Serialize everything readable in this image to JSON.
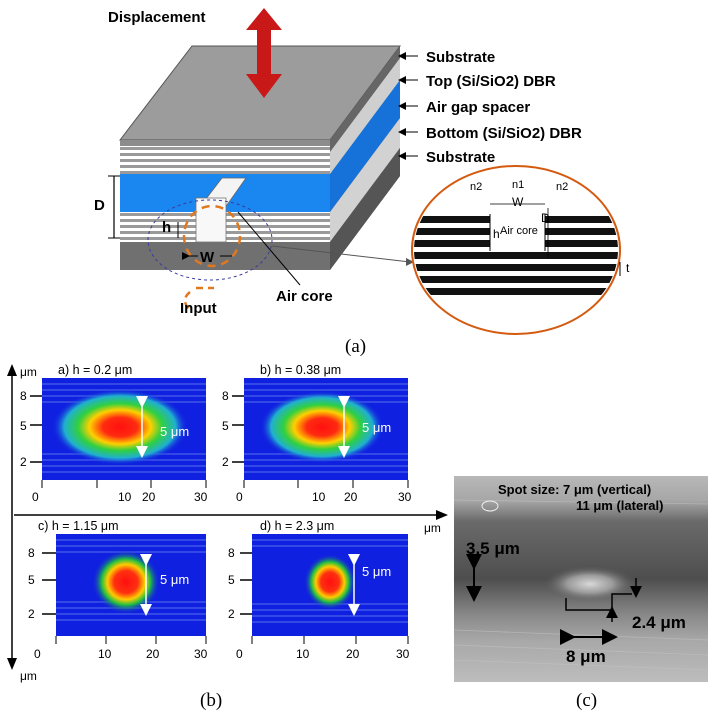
{
  "panel_a": {
    "caption": "(a)",
    "displacement": "Displacement",
    "layers": [
      "Substrate",
      "Top (Si/SiO2) DBR",
      "Air gap spacer",
      "Bottom (Si/SiO2) DBR",
      "Substrate"
    ],
    "dim_D": "D",
    "dim_h": "h",
    "dim_W": "W",
    "input": "Input",
    "air_core": "Air core",
    "inset": {
      "n2_left": "n2",
      "n1": "n1",
      "n2_right": "n2",
      "W": "W",
      "h": "h",
      "D": "D",
      "air_core": "Air core",
      "t": "t"
    },
    "colors": {
      "air_gap": "#1a86f0",
      "substrate_top": "#9a9a9a",
      "substrate_side": "#6e6e6e",
      "arrow": "#c81818",
      "ellipse": "#e07820"
    }
  },
  "panel_b": {
    "caption": "(b)",
    "unit_y": "μm",
    "unit_x": "μm",
    "plots": [
      {
        "title": "a) h = 0.2 μm",
        "h_um": 0.2,
        "mode_label": "5 μm"
      },
      {
        "title": "b) h = 0.38 μm",
        "h_um": 0.38,
        "mode_label": "5 μm"
      },
      {
        "title": "c) h = 1.15 μm",
        "h_um": 1.15,
        "mode_label": "5 μm"
      },
      {
        "title": "d) h = 2.3 μm",
        "h_um": 2.3,
        "mode_label": "5 μm"
      }
    ],
    "y_ticks": [
      "8",
      "5",
      "2",
      "0"
    ],
    "x_ticks": [
      "0",
      "10",
      "20",
      "30"
    ]
  },
  "panel_c": {
    "caption": "(c)",
    "spot_line1": "Spot size: 7 μm (vertical)",
    "spot_line2": "11 μm (lateral)",
    "dim_vertical": "3.5 μm",
    "dim_step": "2.4 μm",
    "dim_width": "8 μm"
  }
}
